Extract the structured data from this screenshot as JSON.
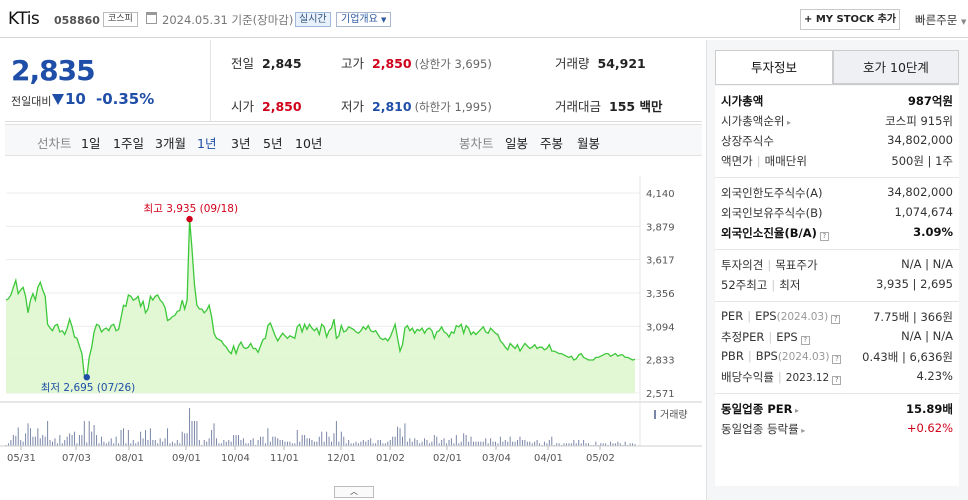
{
  "header": {
    "name": "KTis",
    "code": "058860",
    "market": "코스피",
    "date": "2024.05.31 기준(장마감)",
    "realtime": "실시간",
    "company_overview": "기업개요",
    "mystock_btn": "+ MY STOCK 추가",
    "quick_order": "빠른주문"
  },
  "summary": {
    "price": "2,835",
    "compare_label": "전일대비",
    "change": "10",
    "rate": "-0.35%",
    "prev_label": "전일",
    "prev": "2,845",
    "high_label": "고가",
    "high": "2,850",
    "upper_limit": "(상한가 3,695)",
    "volume_label": "거래량",
    "volume": "54,921",
    "open_label": "시가",
    "open": "2,850",
    "low_label": "저가",
    "low": "2,810",
    "lower_limit": "(하한가 1,995)",
    "amount_label": "거래대금",
    "amount": "155 백만"
  },
  "tabs": {
    "line_label": "선차트",
    "line_periods": [
      "1일",
      "1주일",
      "3개월",
      "1년",
      "3년",
      "5년",
      "10년"
    ],
    "selected": "1년",
    "candle_label": "봉차트",
    "candle_periods": [
      "일봉",
      "주봉",
      "월봉"
    ]
  },
  "chart_data": {
    "type": "area",
    "y_ticks": [
      "4,140",
      "3,879",
      "3,617",
      "3,356",
      "3,094",
      "2,833",
      "2,571"
    ],
    "ylim": [
      2571,
      4140
    ],
    "x_ticks": [
      "05/31",
      "07/03",
      "08/01",
      "09/01",
      "10/04",
      "11/01",
      "12/01",
      "01/02",
      "02/01",
      "03/04",
      "04/01",
      "05/02"
    ],
    "high_annotation": "최고 3,935 (09/18)",
    "low_annotation": "최저 2,695 (07/26)",
    "high": 3935,
    "low": 2695,
    "volume_label": "거래량",
    "prices": [
      3300,
      3310,
      3340,
      3400,
      3455,
      3350,
      3380,
      3400,
      3330,
      3200,
      3300,
      3350,
      3300,
      3400,
      3440,
      3380,
      3330,
      3110,
      3080,
      3060,
      3100,
      3110,
      3050,
      3060,
      3030,
      3080,
      3150,
      3090,
      3010,
      3000,
      2940,
      2880,
      2710,
      2695,
      2850,
      2930,
      3050,
      3110,
      3100,
      3050,
      3070,
      3080,
      3060,
      3100,
      3110,
      3060,
      3070,
      3160,
      3260,
      3250,
      3340,
      3330,
      3300,
      3310,
      3330,
      3250,
      3290,
      3200,
      3230,
      3330,
      3300,
      3330,
      3340,
      3300,
      3280,
      3240,
      3140,
      3150,
      3170,
      3180,
      3210,
      3220,
      3300,
      3230,
      3300,
      3935,
      3700,
      3420,
      3260,
      3230,
      3230,
      3200,
      3220,
      3260,
      3170,
      3040,
      3000,
      2990,
      2980,
      2950,
      2930,
      2900,
      2880,
      2940,
      2880,
      2940,
      2970,
      2930,
      2920,
      2930,
      2960,
      2920,
      2920,
      2890,
      2940,
      2990,
      3000,
      3100,
      3120,
      3070,
      3020,
      2980,
      3010,
      3040,
      3020,
      3000,
      3020,
      3010,
      3000,
      3090,
      3110,
      3050,
      3110,
      3070,
      3110,
      3080,
      3060,
      3080,
      3030,
      3110,
      3090,
      3010,
      3060,
      3080,
      3150,
      3000,
      3020,
      3100,
      3050,
      3060,
      3090,
      3080,
      3070,
      3050,
      3040,
      3060,
      3090,
      3070,
      3100,
      3060,
      3050,
      3060,
      3030,
      3000,
      2990,
      3000,
      2980,
      3010,
      3060,
      3110,
      3000,
      2900,
      2950,
      3080,
      3100,
      3060,
      3080,
      3040,
      3070,
      3060,
      3080,
      3040,
      3070,
      3080,
      3060,
      3000,
      3050,
      3060,
      3090,
      3050,
      3040,
      3010,
      3050,
      3040,
      3100,
      3090,
      3110,
      3040,
      3100,
      3080,
      3030,
      3050,
      3030,
      3050,
      3070,
      3090,
      3050,
      3040,
      3080,
      3060,
      3040,
      3030,
      2980,
      2960,
      2930,
      2910,
      2960,
      2940,
      2920,
      2950,
      2900,
      2930,
      2960,
      2940,
      2920,
      2930,
      2950,
      2920,
      2930,
      2930,
      2910,
      2920,
      2950,
      2900,
      2900,
      2890,
      2880,
      2880,
      2870,
      2860,
      2850,
      2860,
      2830,
      2840,
      2870,
      2880,
      2850,
      2840,
      2830,
      2830,
      2830,
      2850,
      2850,
      2860,
      2870,
      2880,
      2880,
      2860,
      2870,
      2880,
      2860,
      2870,
      2870,
      2850,
      2850,
      2840,
      2830,
      2835
    ]
  },
  "invest": {
    "tab_info": "투자정보",
    "tab_hoga": "호가 10단계",
    "market_cap_label": "시가총액",
    "market_cap": "987억원",
    "market_cap_rank_label": "시가총액순위",
    "market_cap_rank": "코스피 915위",
    "listed_shares_label": "상장주식수",
    "listed_shares": "34,802,000",
    "par_label": "액면가",
    "unit_label": "매매단위",
    "par_unit": "500원 | 1주",
    "foreign_limit_label": "외국인한도주식수(A)",
    "foreign_limit": "34,802,000",
    "foreign_hold_label": "외국인보유주식수(B)",
    "foreign_hold": "1,074,674",
    "foreign_ratio_label": "외국인소진율(B/A)",
    "foreign_ratio": "3.09%",
    "opinion_label": "투자의견",
    "target_label": "목표주가",
    "opinion_target": "N/A | N/A",
    "w52_label": "52주최고",
    "w52_low_label": "최저",
    "w52": "3,935 | 2,695",
    "per_label": "PER",
    "eps_label": "EPS",
    "eps_date": "(2024.03)",
    "per_eps": "7.75배 | 366원",
    "est_per_label": "추정PER",
    "est_eps_label": "EPS",
    "est_per_eps": "N/A | N/A",
    "pbr_label": "PBR",
    "bps_label": "BPS",
    "bps_date": "(2024.03)",
    "pbr_bps": "0.43배 | 6,636원",
    "div_label": "배당수익률",
    "div_date": "2023.12",
    "div": "4.23%",
    "sector_per_label": "동일업종 PER",
    "sector_per": "15.89배",
    "sector_rate_label": "동일업종 등락률",
    "sector_rate": "+0.62%"
  },
  "colors": {
    "up": "#d0021b",
    "down": "#1f4ea8",
    "line": "#3cc83a",
    "fill": "#dff7cf"
  }
}
